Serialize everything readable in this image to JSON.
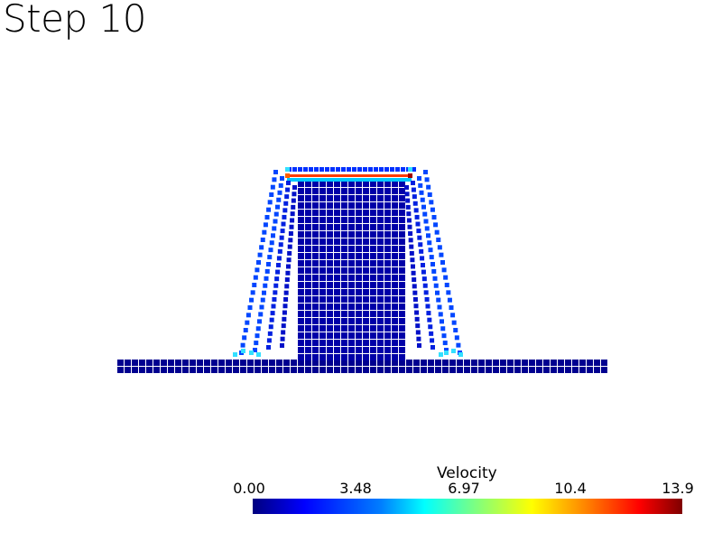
{
  "title": "Step 10",
  "legend": {
    "title": "Velocity",
    "ticks": [
      "0.00",
      "3.48",
      "6.97",
      "10.4",
      "13.9"
    ],
    "range": [
      0.0,
      13.9
    ],
    "colormap": [
      "#00007f",
      "#0000ff",
      "#007fff",
      "#00ffff",
      "#7fff7f",
      "#ffff00",
      "#ff7f00",
      "#ff0000",
      "#7f0000"
    ]
  },
  "colors": {
    "base": "#000090",
    "body": "#0000a8",
    "outer_particles": "#0046ff",
    "hot": "#ff3a00",
    "edge": "#33e0ff"
  }
}
